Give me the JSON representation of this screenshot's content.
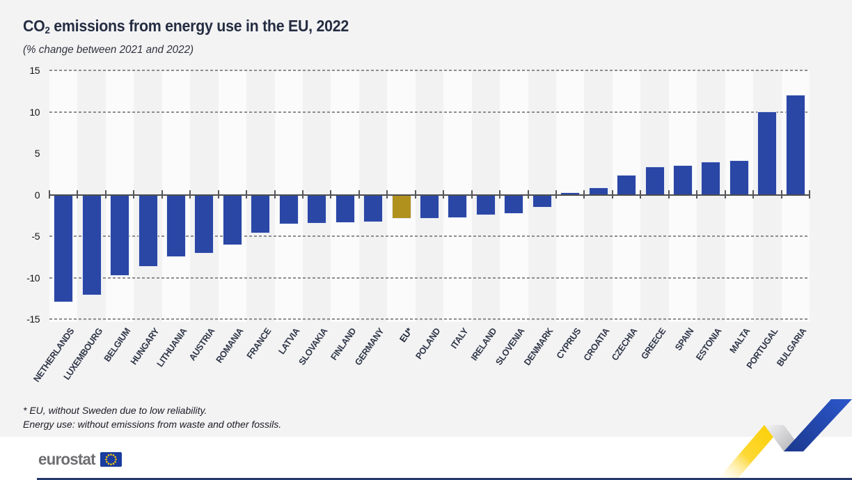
{
  "header": {
    "title_prefix": "CO",
    "title_sub": "2",
    "title_rest": " emissions from energy use in the EU, 2022",
    "subtitle": "(% change between 2021 and 2022)"
  },
  "footnotes": {
    "line1": "* EU, without Sweden due to low reliability.",
    "line2": "Energy use: without emissions from waste and other fossils."
  },
  "footer": {
    "logo_text": "eurostat"
  },
  "chart_data": {
    "type": "bar",
    "title": "CO2 emissions from energy use in the EU, 2022",
    "subtitle": "(% change between 2021 and 2022)",
    "xlabel": "",
    "ylabel": "% change between 2021 and 2022",
    "categories": [
      "NETHERLANDS",
      "LUXEMBOURG",
      "BELGIUM",
      "HUNGARY",
      "LITHUANIA",
      "AUSTRIA",
      "ROMANIA",
      "FRANCE",
      "LATVIA",
      "SLOVAKIA",
      "FINLAND",
      "GERMANY",
      "EU*",
      "POLAND",
      "ITALY",
      "IRELAND",
      "SLOVENIA",
      "DENMARK",
      "CYPRUS",
      "CROATIA",
      "CZECHIA",
      "GREECE",
      "SPAIN",
      "ESTONIA",
      "MALTA",
      "PORTUGAL",
      "BULGARIA"
    ],
    "values": [
      -12.9,
      -12.1,
      -9.7,
      -8.6,
      -7.4,
      -7.0,
      -6.0,
      -4.6,
      -3.5,
      -3.4,
      -3.3,
      -3.2,
      -2.8,
      -2.8,
      -2.7,
      -2.4,
      -2.2,
      -1.5,
      0.2,
      0.8,
      2.3,
      3.3,
      3.5,
      3.9,
      4.1,
      10.0,
      12.0
    ],
    "highlight_category": "EU*",
    "colors": {
      "bar": "#2a47a6",
      "highlight": "#b1911d",
      "grid": "#8d8d90",
      "zero_axis": "#4d4d4f",
      "band_light": "#fbfbfc",
      "band_dark": "#f2f2f3"
    },
    "ylim": [
      -15,
      15
    ],
    "ytick_labels": [
      15,
      10,
      5,
      0,
      -5,
      -10,
      -15
    ],
    "gridline_values": [
      15,
      10,
      -5,
      -10,
      -15
    ],
    "grid_style": "dashed",
    "legend_position": "none",
    "column_banding": true
  }
}
